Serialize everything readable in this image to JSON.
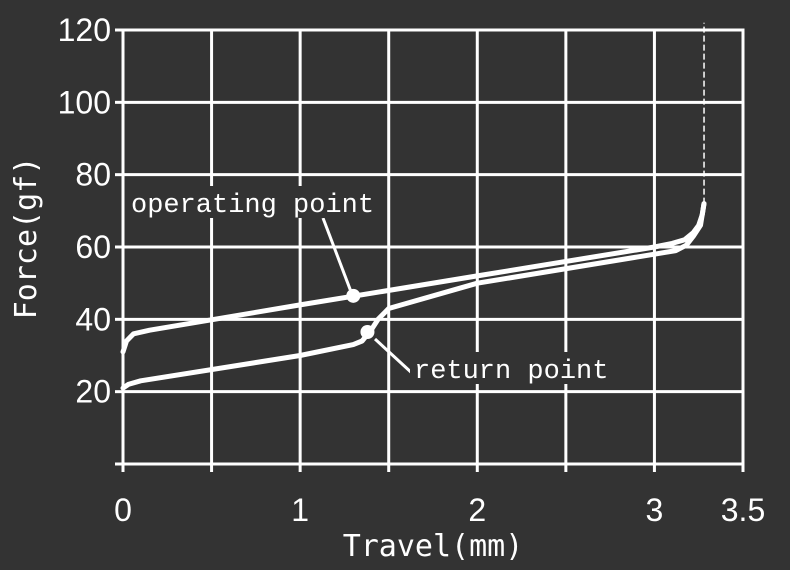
{
  "chart_data": {
    "type": "line",
    "title": "",
    "xlabel": "Travel(mm)",
    "ylabel": "Force(gf)",
    "xlim": [
      0,
      3.5
    ],
    "ylim": [
      0,
      120
    ],
    "x_ticks": [
      "0",
      "1",
      "2",
      "3",
      "3.5"
    ],
    "y_ticks": [
      "20",
      "40",
      "60",
      "80",
      "100",
      "120"
    ],
    "grid": true,
    "colors": {
      "background": "#333333",
      "foreground": "#ffffff"
    },
    "series": [
      {
        "x": [
          0,
          0.02,
          0.06,
          0.15,
          1.0,
          2.0,
          3.0,
          3.1,
          3.17,
          3.22,
          3.25,
          3.27,
          3.28
        ],
        "values": [
          31,
          34,
          36,
          37,
          44,
          52,
          60,
          61,
          62,
          64,
          66,
          69,
          72
        ]
      },
      {
        "x": [
          3.28,
          3.26,
          3.22,
          3.18,
          3.12,
          3.0,
          2.0,
          1.5,
          1.48,
          1.44,
          1.4,
          1.35,
          1.3,
          1.0,
          0.1,
          0.03,
          0.0
        ],
        "values": [
          72,
          66,
          63,
          60.5,
          59,
          58,
          50,
          43,
          42,
          40,
          37,
          34,
          33,
          30,
          23,
          22,
          21
        ]
      }
    ],
    "annotations": [
      {
        "label": "operating point",
        "point": [
          1.3,
          46.5
        ]
      },
      {
        "label": "return point",
        "point": [
          1.38,
          36.5
        ]
      }
    ],
    "reference_line": {
      "x": 3.28,
      "from": 72,
      "to": 122,
      "style": "dashed"
    }
  }
}
